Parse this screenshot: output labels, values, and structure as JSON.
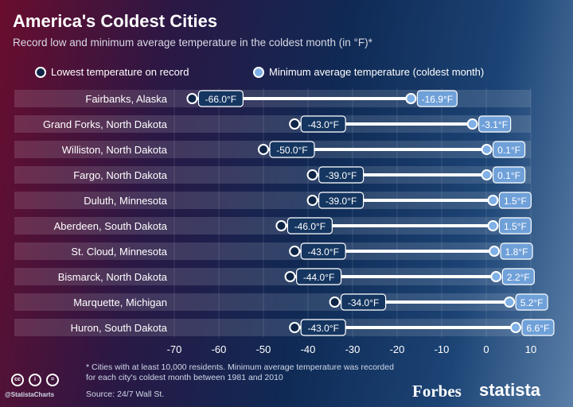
{
  "title": "America's Coldest Cities",
  "subtitle": "Record low and minimum average temperature in the coldest month (in °F)*",
  "legend": {
    "low": "Lowest temperature on record",
    "avg": "Minimum average temperature (coldest month)"
  },
  "colors": {
    "low_dot": "#0f2547",
    "avg_dot": "#7fb0e6",
    "label_box": "#153661",
    "avg_box": "#6fa0d8"
  },
  "chart_data": {
    "type": "dumbbell",
    "title": "America's Coldest Cities",
    "categories": [
      "Fairbanks, Alaska",
      "Grand Forks, North Dakota",
      "Williston, North Dakota",
      "Fargo, North Dakota",
      "Duluth, Minnesota",
      "Aberdeen, South Dakota",
      "St. Cloud, Minnesota",
      "Bismarck, North Dakota",
      "Marquette, Michigan",
      "Huron, South Dakota"
    ],
    "series": [
      {
        "name": "Lowest temperature on record",
        "values": [
          -66.0,
          -43.0,
          -50.0,
          -39.0,
          -39.0,
          -46.0,
          -43.0,
          -44.0,
          -34.0,
          -43.0
        ]
      },
      {
        "name": "Minimum average temperature (coldest month)",
        "values": [
          -16.9,
          -3.1,
          0.1,
          0.1,
          1.5,
          1.5,
          1.8,
          2.2,
          5.2,
          6.6
        ]
      }
    ],
    "labels_low": [
      "-66.0°F",
      "-43.0°F",
      "-50.0°F",
      "-39.0°F",
      "-39.0°F",
      "-46.0°F",
      "-43.0°F",
      "-44.0°F",
      "-34.0°F",
      "-43.0°F"
    ],
    "labels_avg": [
      "-16.9°F",
      "-3.1°F",
      "0.1°F",
      "0.1°F",
      "1.5°F",
      "1.5°F",
      "1.8°F",
      "2.2°F",
      "5.2°F",
      "6.6°F"
    ],
    "xticks": [
      "-70",
      "-60",
      "-50",
      "-40",
      "-30",
      "-20",
      "-10",
      "0",
      "10"
    ],
    "xlim": [
      -70,
      10
    ],
    "grid": true
  },
  "footer": {
    "footnote": "* Cities with at least 10,000 residents. Minimum average temperature was recorded for each city's coldest month between 1981 and 2010",
    "source": "Source: 24/7 Wall St.",
    "handle": "@StatistaCharts",
    "forbes": "Forbes",
    "statista": "statista"
  }
}
